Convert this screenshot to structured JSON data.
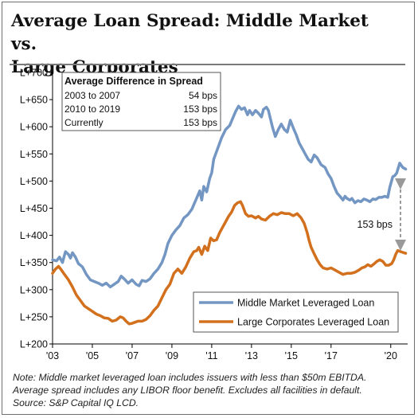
{
  "title_line1": "Average Loan Spread: Middle Market vs.",
  "title_line2": "Large Corporates",
  "inset": {
    "heading": "Average Difference in Spread",
    "rows": [
      {
        "label": "2003 to 2007",
        "value": "54 bps"
      },
      {
        "label": "2010 to 2019",
        "value": "153 bps"
      },
      {
        "label": "Currently",
        "value": "153 bps"
      }
    ]
  },
  "annotation": "153 bps",
  "notes": [
    "Note: Middle market leveraged loan includes issuers with less than $50m EBITDA.",
    "Average spread includes any LIBOR floor benefit. Excludes all facilities in default.",
    "Source: S&P Capital IQ LCD."
  ],
  "colors": {
    "middle_market": "#7396c3",
    "large_corporates": "#d2701d",
    "axis": "#000000",
    "arrow": "#9a9a9a"
  },
  "chart_data": {
    "type": "line",
    "title": "Average Loan Spread: Middle Market vs. Large Corporates",
    "xlabel": "",
    "ylabel": "",
    "xlim": [
      2003.0,
      2020.85
    ],
    "ylim": [
      200,
      700
    ],
    "x_ticks": [
      2003,
      2005,
      2007,
      2009,
      2011,
      2013,
      2015,
      2017,
      2020
    ],
    "x_tick_labels": [
      "'03",
      "'05",
      "'07",
      "'09",
      "'11",
      "'13",
      "'15",
      "'17",
      "'20"
    ],
    "y_ticks": [
      200,
      250,
      300,
      350,
      400,
      450,
      500,
      550,
      600,
      650,
      700
    ],
    "y_tick_labels": [
      "L+200",
      "L+250",
      "L+300",
      "L+350",
      "L+400",
      "L+450",
      "L+500",
      "L+550",
      "L+600",
      "L+650",
      "L+700"
    ],
    "legend": "bottom-right",
    "grid": false,
    "series": [
      {
        "name": "Middle Market Leveraged Loan",
        "points": [
          [
            2003.0,
            355
          ],
          [
            2003.2,
            353
          ],
          [
            2003.35,
            360
          ],
          [
            2003.5,
            350
          ],
          [
            2003.65,
            370
          ],
          [
            2003.8,
            365
          ],
          [
            2003.9,
            358
          ],
          [
            2004.0,
            368
          ],
          [
            2004.15,
            360
          ],
          [
            2004.3,
            348
          ],
          [
            2004.5,
            342
          ],
          [
            2004.7,
            328
          ],
          [
            2004.9,
            318
          ],
          [
            2005.1,
            315
          ],
          [
            2005.3,
            312
          ],
          [
            2005.5,
            308
          ],
          [
            2005.7,
            312
          ],
          [
            2005.9,
            305
          ],
          [
            2006.1,
            310
          ],
          [
            2006.3,
            315
          ],
          [
            2006.45,
            325
          ],
          [
            2006.6,
            320
          ],
          [
            2006.8,
            312
          ],
          [
            2007.0,
            318
          ],
          [
            2007.2,
            310
          ],
          [
            2007.35,
            307
          ],
          [
            2007.5,
            317
          ],
          [
            2007.7,
            315
          ],
          [
            2007.9,
            320
          ],
          [
            2008.1,
            330
          ],
          [
            2008.3,
            338
          ],
          [
            2008.5,
            350
          ],
          [
            2008.65,
            365
          ],
          [
            2008.8,
            385
          ],
          [
            2009.0,
            400
          ],
          [
            2009.2,
            410
          ],
          [
            2009.4,
            418
          ],
          [
            2009.6,
            432
          ],
          [
            2009.8,
            438
          ],
          [
            2010.0,
            448
          ],
          [
            2010.2,
            465
          ],
          [
            2010.4,
            482
          ],
          [
            2010.5,
            465
          ],
          [
            2010.6,
            490
          ],
          [
            2010.75,
            480
          ],
          [
            2010.9,
            505
          ],
          [
            2011.0,
            515
          ],
          [
            2011.1,
            540
          ],
          [
            2011.3,
            560
          ],
          [
            2011.5,
            580
          ],
          [
            2011.7,
            595
          ],
          [
            2011.9,
            602
          ],
          [
            2012.05,
            615
          ],
          [
            2012.2,
            628
          ],
          [
            2012.35,
            638
          ],
          [
            2012.5,
            632
          ],
          [
            2012.65,
            635
          ],
          [
            2012.8,
            622
          ],
          [
            2012.9,
            630
          ],
          [
            2013.05,
            622
          ],
          [
            2013.2,
            630
          ],
          [
            2013.35,
            625
          ],
          [
            2013.5,
            618
          ],
          [
            2013.6,
            632
          ],
          [
            2013.75,
            636
          ],
          [
            2013.85,
            630
          ],
          [
            2013.95,
            615
          ],
          [
            2014.05,
            600
          ],
          [
            2014.2,
            582
          ],
          [
            2014.35,
            595
          ],
          [
            2014.5,
            605
          ],
          [
            2014.65,
            595
          ],
          [
            2014.8,
            590
          ],
          [
            2014.95,
            612
          ],
          [
            2015.1,
            598
          ],
          [
            2015.25,
            585
          ],
          [
            2015.4,
            570
          ],
          [
            2015.55,
            560
          ],
          [
            2015.7,
            550
          ],
          [
            2015.85,
            540
          ],
          [
            2016.0,
            535
          ],
          [
            2016.15,
            548
          ],
          [
            2016.3,
            543
          ],
          [
            2016.5,
            530
          ],
          [
            2016.7,
            525
          ],
          [
            2016.85,
            513
          ],
          [
            2017.0,
            505
          ],
          [
            2017.15,
            490
          ],
          [
            2017.3,
            478
          ],
          [
            2017.45,
            472
          ],
          [
            2017.6,
            465
          ],
          [
            2017.7,
            472
          ],
          [
            2017.8,
            468
          ],
          [
            2017.95,
            465
          ],
          [
            2018.05,
            468
          ],
          [
            2018.2,
            460
          ],
          [
            2018.35,
            464
          ],
          [
            2018.5,
            462
          ],
          [
            2018.65,
            467
          ],
          [
            2018.8,
            465
          ],
          [
            2018.95,
            462
          ],
          [
            2019.1,
            467
          ],
          [
            2019.25,
            466
          ],
          [
            2019.4,
            470
          ],
          [
            2019.55,
            470
          ],
          [
            2019.7,
            472
          ],
          [
            2019.85,
            470
          ],
          [
            2019.95,
            488
          ],
          [
            2020.1,
            508
          ],
          [
            2020.2,
            510
          ],
          [
            2020.3,
            515
          ],
          [
            2020.45,
            533
          ],
          [
            2020.6,
            525
          ],
          [
            2020.75,
            522
          ]
        ]
      },
      {
        "name": "Large Corporates Leveraged Loan",
        "points": [
          [
            2003.0,
            330
          ],
          [
            2003.15,
            338
          ],
          [
            2003.3,
            343
          ],
          [
            2003.45,
            336
          ],
          [
            2003.6,
            328
          ],
          [
            2003.8,
            318
          ],
          [
            2004.0,
            305
          ],
          [
            2004.2,
            290
          ],
          [
            2004.4,
            280
          ],
          [
            2004.6,
            270
          ],
          [
            2004.8,
            265
          ],
          [
            2005.0,
            260
          ],
          [
            2005.2,
            255
          ],
          [
            2005.4,
            252
          ],
          [
            2005.6,
            248
          ],
          [
            2005.8,
            247
          ],
          [
            2006.0,
            242
          ],
          [
            2006.2,
            244
          ],
          [
            2006.4,
            250
          ],
          [
            2006.55,
            248
          ],
          [
            2006.7,
            242
          ],
          [
            2006.85,
            237
          ],
          [
            2007.0,
            238
          ],
          [
            2007.15,
            240
          ],
          [
            2007.3,
            242
          ],
          [
            2007.5,
            242
          ],
          [
            2007.7,
            245
          ],
          [
            2007.9,
            252
          ],
          [
            2008.1,
            262
          ],
          [
            2008.3,
            270
          ],
          [
            2008.5,
            285
          ],
          [
            2008.7,
            300
          ],
          [
            2008.9,
            310
          ],
          [
            2009.1,
            330
          ],
          [
            2009.3,
            338
          ],
          [
            2009.5,
            330
          ],
          [
            2009.7,
            342
          ],
          [
            2009.9,
            358
          ],
          [
            2010.1,
            370
          ],
          [
            2010.25,
            372
          ],
          [
            2010.35,
            378
          ],
          [
            2010.5,
            365
          ],
          [
            2010.65,
            380
          ],
          [
            2010.8,
            372
          ],
          [
            2010.95,
            395
          ],
          [
            2011.1,
            390
          ],
          [
            2011.25,
            392
          ],
          [
            2011.4,
            405
          ],
          [
            2011.55,
            415
          ],
          [
            2011.7,
            425
          ],
          [
            2011.85,
            435
          ],
          [
            2012.0,
            443
          ],
          [
            2012.15,
            455
          ],
          [
            2012.3,
            460
          ],
          [
            2012.45,
            462
          ],
          [
            2012.55,
            455
          ],
          [
            2012.7,
            440
          ],
          [
            2012.85,
            435
          ],
          [
            2013.0,
            436
          ],
          [
            2013.2,
            432
          ],
          [
            2013.35,
            435
          ],
          [
            2013.5,
            430
          ],
          [
            2013.7,
            428
          ],
          [
            2013.9,
            435
          ],
          [
            2014.1,
            440
          ],
          [
            2014.3,
            438
          ],
          [
            2014.5,
            442
          ],
          [
            2014.7,
            440
          ],
          [
            2014.9,
            440
          ],
          [
            2015.1,
            436
          ],
          [
            2015.3,
            440
          ],
          [
            2015.5,
            432
          ],
          [
            2015.65,
            422
          ],
          [
            2015.8,
            405
          ],
          [
            2015.9,
            390
          ],
          [
            2016.0,
            378
          ],
          [
            2016.15,
            366
          ],
          [
            2016.3,
            355
          ],
          [
            2016.45,
            346
          ],
          [
            2016.6,
            340
          ],
          [
            2016.8,
            338
          ],
          [
            2017.0,
            340
          ],
          [
            2017.2,
            336
          ],
          [
            2017.4,
            332
          ],
          [
            2017.6,
            328
          ],
          [
            2017.8,
            330
          ],
          [
            2018.0,
            330
          ],
          [
            2018.2,
            332
          ],
          [
            2018.4,
            336
          ],
          [
            2018.55,
            340
          ],
          [
            2018.7,
            342
          ],
          [
            2018.85,
            346
          ],
          [
            2019.0,
            343
          ],
          [
            2019.15,
            347
          ],
          [
            2019.3,
            352
          ],
          [
            2019.45,
            355
          ],
          [
            2019.6,
            352
          ],
          [
            2019.75,
            345
          ],
          [
            2019.9,
            345
          ],
          [
            2020.05,
            348
          ],
          [
            2020.15,
            355
          ],
          [
            2020.25,
            365
          ],
          [
            2020.35,
            372
          ],
          [
            2020.5,
            370
          ],
          [
            2020.65,
            368
          ],
          [
            2020.75,
            367
          ]
        ]
      }
    ]
  }
}
